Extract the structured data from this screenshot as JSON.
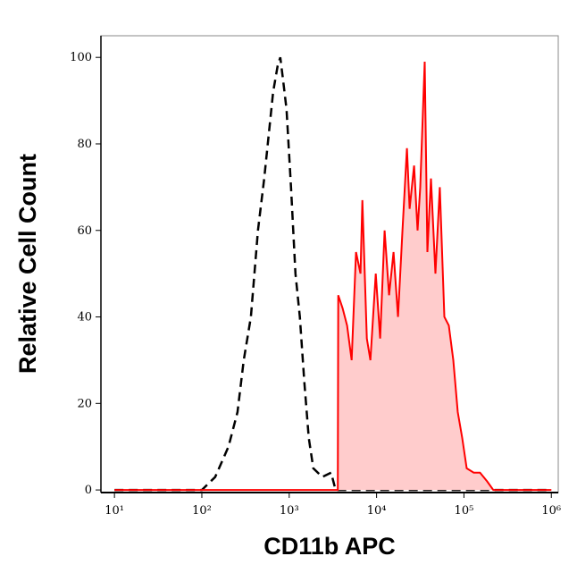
{
  "chart_data": {
    "type": "histogram-overlay",
    "xlabel": "CD11b APC",
    "ylabel": "Relative Cell Count",
    "xlog": true,
    "xlim": [
      7,
      1200000
    ],
    "ylim": [
      -0.6,
      105
    ],
    "xticks": [
      {
        "value": 10,
        "label": "10¹"
      },
      {
        "value": 100,
        "label": "10²"
      },
      {
        "value": 1000,
        "label": "10³"
      },
      {
        "value": 10000,
        "label": "10⁴"
      },
      {
        "value": 100000,
        "label": "10⁵"
      },
      {
        "value": 1000000,
        "label": "10⁶"
      }
    ],
    "yticks": [
      0,
      20,
      40,
      60,
      80,
      100
    ],
    "series": [
      {
        "color": "#000000",
        "dashed": true,
        "fill": null,
        "x": [
          10,
          100,
          142,
          202,
          256,
          302,
          364,
          439,
          518,
          582,
          655,
          736,
          790,
          849,
          932,
          1048,
          1178,
          1325,
          1490,
          1675,
          1887,
          2388,
          3020,
          3396,
          1000000
        ],
        "values": [
          0,
          0,
          3,
          10,
          18,
          30,
          40,
          60,
          72,
          82,
          92,
          98,
          100,
          95,
          88,
          70,
          50,
          40,
          25,
          12,
          5,
          3,
          4,
          0,
          0
        ]
      },
      {
        "color": "#ff0000",
        "dashed": false,
        "fill": "#ffcccc",
        "x": [
          10,
          3600,
          3640,
          4090,
          4600,
          5180,
          5820,
          6550,
          6870,
          7730,
          8490,
          9780,
          10990,
          12360,
          13900,
          15630,
          17580,
          19770,
          22230,
          23870,
          26850,
          29450,
          31620,
          35560,
          38190,
          41900,
          47120,
          52970,
          59700,
          67100,
          75500,
          84900,
          95500,
          107400,
          129400,
          152800,
          184000,
          217000,
          1000000
        ],
        "values": [
          0,
          0,
          45,
          42,
          38,
          30,
          55,
          50,
          67,
          35,
          30,
          50,
          35,
          60,
          45,
          55,
          40,
          60,
          79,
          65,
          75,
          60,
          70,
          99,
          55,
          72,
          50,
          70,
          40,
          38,
          30,
          18,
          12,
          5,
          4,
          4,
          2,
          0,
          0
        ]
      }
    ]
  }
}
